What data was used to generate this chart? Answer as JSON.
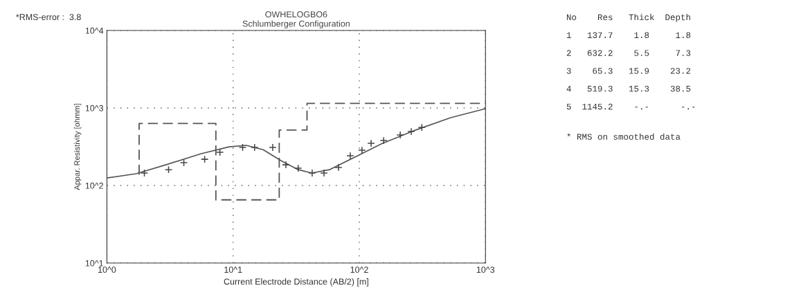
{
  "chart_data": {
    "type": "line",
    "title": "OWHELOGBO6\nSchlumberger Configuration",
    "xlabel": "Current Electrode Distance (AB/2) [m]",
    "ylabel": "Appar. Resistivity [ohmm]",
    "log": "xy",
    "xlim": [
      1,
      1000
    ],
    "ylim": [
      10,
      10000
    ],
    "xticks": [
      {
        "value": 1,
        "label": "10^0"
      },
      {
        "value": 10,
        "label": "10^1"
      },
      {
        "value": 100,
        "label": "10^2"
      },
      {
        "value": 1000,
        "label": "10^3"
      }
    ],
    "yticks": [
      {
        "value": 10,
        "label": "10^1"
      },
      {
        "value": 100,
        "label": "10^2"
      },
      {
        "value": 1000,
        "label": "10^3"
      },
      {
        "value": 10000,
        "label": "10^4"
      }
    ],
    "grid": true,
    "series": [
      {
        "type": "step",
        "color": "#555555",
        "line_style": "dashed",
        "marker": "none",
        "x": [
          1.8,
          7.3,
          23.2,
          38.5,
          1000
        ],
        "values": [
          137.7,
          632.2,
          65.3,
          519.3,
          1145.2
        ]
      },
      {
        "color": "#555555",
        "line_style": "solid",
        "marker": "none",
        "x": [
          1,
          1.7,
          2.96,
          5.6,
          9.3,
          12.7,
          17.3,
          23.9,
          32.8,
          42,
          58,
          90,
          150,
          280,
          530,
          1000
        ],
        "values": [
          125,
          142,
          186,
          258,
          316,
          330,
          290,
          210,
          160,
          145,
          160,
          228,
          345,
          520,
          750,
          980
        ]
      },
      {
        "type": "scatter",
        "color": "#444444",
        "marker": "cross",
        "x": [
          1.98,
          3.08,
          4.07,
          5.95,
          7.86,
          11.9,
          14.8,
          20.6,
          26.2,
          32.8,
          42.3,
          52.5,
          68.4,
          84.8,
          105,
          124,
          156,
          211,
          258,
          313
        ],
        "values": [
          145,
          160,
          197,
          218,
          268,
          310,
          310,
          310,
          185,
          167,
          145,
          145,
          171,
          242,
          285,
          350,
          380,
          449,
          497,
          562
        ]
      }
    ],
    "annotations": [
      "*RMS-error :  3.8",
      "No    Res   Thick  Depth",
      "1   137.7    1.8     1.8",
      "2   632.2    5.5     7.3",
      "3    65.3   15.9    23.2",
      "4   519.3   15.3    38.5",
      "5  1145.2    -.-      -.-",
      "* RMS on smoothed data"
    ]
  }
}
